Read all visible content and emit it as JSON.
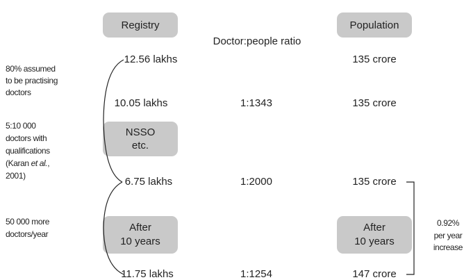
{
  "headers": {
    "registry": "Registry",
    "population": "Population",
    "ratio": "Doctor:people ratio"
  },
  "rows": [
    {
      "registry": "12.56 lakhs",
      "population": "135 crore"
    },
    {
      "registry": "10.05 lakhs",
      "ratio": "1:1343",
      "population": "135 crore"
    },
    {
      "registry": "6.75 lakhs",
      "ratio": "1:2000",
      "population": "135 crore"
    },
    {
      "registry": "11.75 lakhs",
      "ratio": "1:1254",
      "population": "147 crore"
    }
  ],
  "boxes": {
    "nsso": [
      "NSSO",
      "etc."
    ],
    "after_left": [
      "After",
      "10 years"
    ],
    "after_right": [
      "After",
      "10 years"
    ]
  },
  "notes": {
    "practising": [
      "80% assumed",
      "to be practising",
      "doctors"
    ],
    "qualifications": {
      "lines": [
        "5:10 000",
        "doctors with",
        "qualifications"
      ],
      "citation": {
        "before": "(Karan ",
        "italic": "et al.",
        "after": ","
      },
      "year": "2001)"
    },
    "growth": [
      "50 000 more",
      "doctors/year"
    ],
    "increase": [
      "0.92%",
      "per year",
      "increase"
    ]
  }
}
